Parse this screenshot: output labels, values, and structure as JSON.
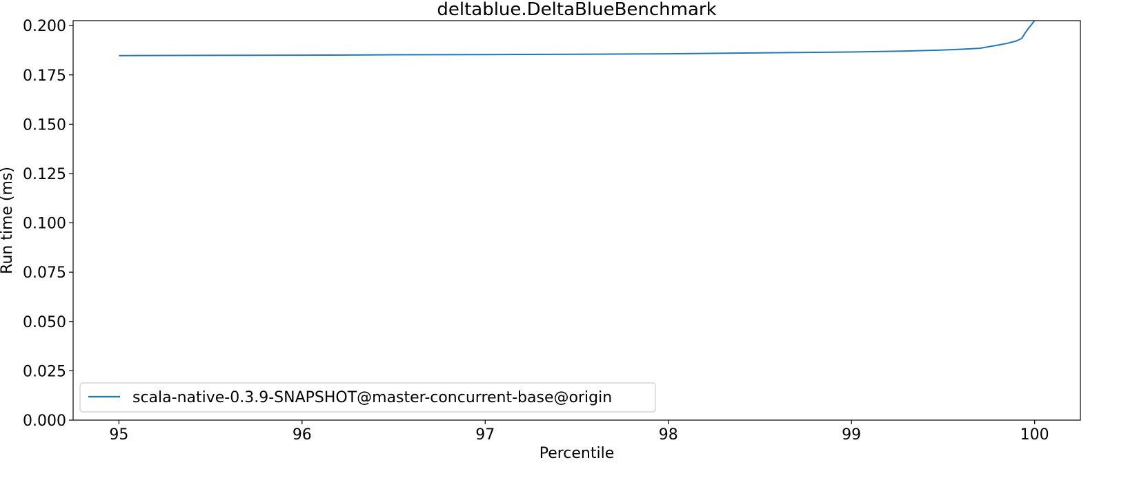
{
  "chart_data": {
    "type": "line",
    "title": "deltablue.DeltaBlueBenchmark",
    "xlabel": "Percentile",
    "ylabel": "Run time (ms)",
    "xlim": [
      94.75,
      100.25
    ],
    "ylim": [
      0.0,
      0.2025
    ],
    "xticks": [
      95,
      96,
      97,
      98,
      99,
      100
    ],
    "xtick_labels": [
      "95",
      "96",
      "97",
      "98",
      "99",
      "100"
    ],
    "yticks": [
      0.0,
      0.025,
      0.05,
      0.075,
      0.1,
      0.125,
      0.15,
      0.175,
      0.2
    ],
    "ytick_labels": [
      "0.000",
      "0.025",
      "0.050",
      "0.075",
      "0.100",
      "0.125",
      "0.150",
      "0.175",
      "0.200"
    ],
    "grid": false,
    "legend_position": "lower-left",
    "series": [
      {
        "name": "scala-native-0.3.9-SNAPSHOT@master-concurrent-base@origin",
        "color": "#1f77b4",
        "x": [
          95.0,
          95.5,
          96.0,
          96.5,
          97.0,
          97.5,
          98.0,
          98.5,
          99.0,
          99.3,
          99.5,
          99.6,
          99.7,
          99.75,
          99.8,
          99.85,
          99.9,
          99.93,
          99.95,
          99.97,
          100.0
        ],
        "y": [
          0.1848,
          0.1849,
          0.185,
          0.1852,
          0.1853,
          0.1855,
          0.1857,
          0.1862,
          0.1866,
          0.1871,
          0.1876,
          0.188,
          0.1885,
          0.1893,
          0.1901,
          0.191,
          0.1922,
          0.1935,
          0.1965,
          0.199,
          0.2025
        ]
      }
    ]
  }
}
